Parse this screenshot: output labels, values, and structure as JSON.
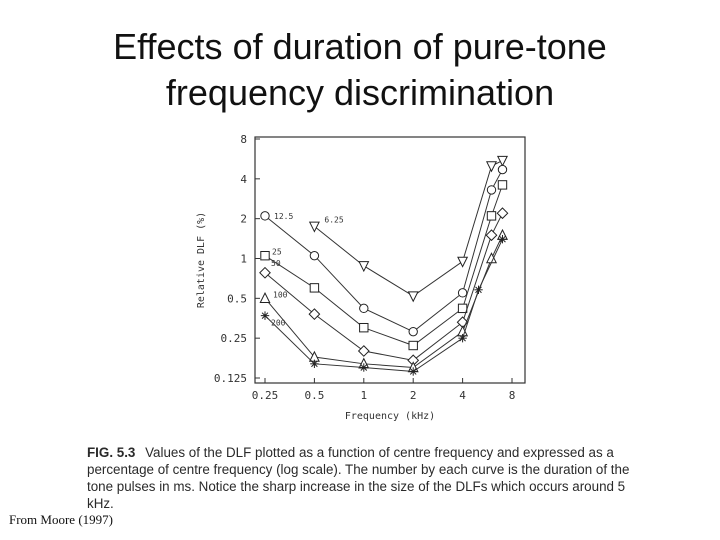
{
  "slide": {
    "title_line1": "Effects of duration of pure-tone",
    "title_line2": "frequency discrimination",
    "caption_fig": "FIG. 5.3",
    "caption_text": "Values of the DLF plotted as a function of centre frequency and expressed as a percentage of centre frequency (log scale). The number by each curve is the duration of the tone pulses in ms. Notice the sharp increase in the size of the DLFs which occurs around 5 kHz.",
    "source": "From Moore (1997)"
  },
  "chart_data": {
    "type": "line",
    "xlabel": "Frequency (kHz)",
    "ylabel": "Relative DLF (%)",
    "x_scale": "log2",
    "y_scale": "log2",
    "xlim": [
      0.25,
      8
    ],
    "ylim": [
      0.125,
      8
    ],
    "x_ticks": [
      0.25,
      0.5,
      1,
      2,
      4,
      8
    ],
    "x_tick_labels": [
      "0.25",
      "0.5",
      "1",
      "2",
      "4",
      "8"
    ],
    "y_ticks": [
      0.125,
      0.25,
      0.5,
      1,
      2,
      4,
      8
    ],
    "y_tick_labels": [
      "0.125",
      "0.25",
      "0.5",
      "1",
      "2",
      "4",
      "8"
    ],
    "series": [
      {
        "name": "6.25",
        "marker": "triangle-down",
        "x": [
          0.5,
          1,
          2,
          4,
          6,
          7
        ],
        "y": [
          1.75,
          0.88,
          0.52,
          0.95,
          5.0,
          5.5
        ]
      },
      {
        "name": "12.5",
        "marker": "circle",
        "x": [
          0.25,
          0.5,
          1,
          2,
          4,
          6,
          7
        ],
        "y": [
          2.1,
          1.05,
          0.42,
          0.28,
          0.55,
          3.3,
          4.7
        ]
      },
      {
        "name": "25",
        "marker": "square",
        "x": [
          0.25,
          0.5,
          1,
          2,
          4,
          6,
          7
        ],
        "y": [
          1.05,
          0.6,
          0.3,
          0.22,
          0.42,
          2.1,
          3.6
        ]
      },
      {
        "name": "50",
        "marker": "diamond",
        "x": [
          0.25,
          0.5,
          1,
          2,
          4,
          6,
          7
        ],
        "y": [
          0.78,
          0.38,
          0.2,
          0.17,
          0.33,
          1.5,
          2.2
        ]
      },
      {
        "name": "100",
        "marker": "triangle-up",
        "x": [
          0.25,
          0.5,
          1,
          2,
          4,
          6,
          7
        ],
        "y": [
          0.5,
          0.18,
          0.16,
          0.15,
          0.28,
          1.0,
          1.5
        ]
      },
      {
        "name": "200",
        "marker": "star",
        "x": [
          0.25,
          0.5,
          1,
          2,
          4,
          5,
          7
        ],
        "y": [
          0.37,
          0.16,
          0.15,
          0.14,
          0.25,
          0.58,
          1.4
        ]
      }
    ]
  }
}
